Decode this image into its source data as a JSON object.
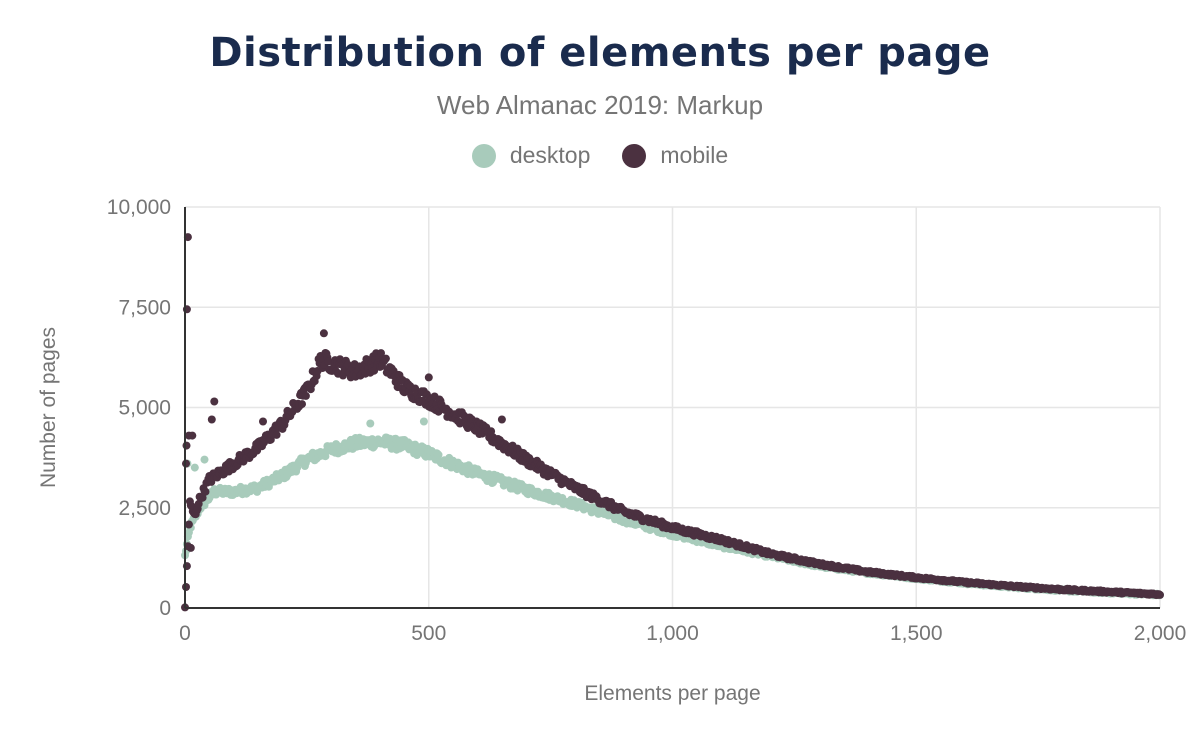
{
  "chart_data": {
    "type": "scatter",
    "title": "Distribution of elements per page",
    "subtitle": "Web Almanac 2019: Markup",
    "xlabel": "Elements per page",
    "ylabel": "Number of pages",
    "xlim": [
      0,
      2000
    ],
    "ylim": [
      0,
      10000
    ],
    "xticks": [
      0,
      500,
      1000,
      1500,
      2000
    ],
    "yticks": [
      0,
      2500,
      5000,
      7500,
      10000
    ],
    "xtick_labels": [
      "0",
      "500",
      "1,000",
      "1,500",
      "2,000"
    ],
    "ytick_labels": [
      "0",
      "2,500",
      "5,000",
      "7,500",
      "10,000"
    ],
    "grid": true,
    "legend_position": "top-center",
    "series": [
      {
        "name": "desktop",
        "color": "#a8cbbb",
        "anchors": [
          [
            0,
            1300
          ],
          [
            10,
            2000
          ],
          [
            30,
            2500
          ],
          [
            60,
            2900
          ],
          [
            100,
            2900
          ],
          [
            150,
            3000
          ],
          [
            200,
            3300
          ],
          [
            250,
            3700
          ],
          [
            300,
            3950
          ],
          [
            350,
            4100
          ],
          [
            400,
            4150
          ],
          [
            450,
            4050
          ],
          [
            500,
            3850
          ],
          [
            600,
            3350
          ],
          [
            700,
            2950
          ],
          [
            800,
            2600
          ],
          [
            900,
            2200
          ],
          [
            1000,
            1850
          ],
          [
            1100,
            1550
          ],
          [
            1200,
            1300
          ],
          [
            1300,
            1050
          ],
          [
            1400,
            880
          ],
          [
            1500,
            740
          ],
          [
            1600,
            620
          ],
          [
            1700,
            520
          ],
          [
            1800,
            440
          ],
          [
            1900,
            380
          ],
          [
            2000,
            330
          ]
        ],
        "outliers": [
          [
            5,
            3600
          ],
          [
            20,
            3500
          ],
          [
            40,
            3700
          ],
          [
            380,
            4600
          ],
          [
            490,
            4650
          ]
        ]
      },
      {
        "name": "mobile",
        "color": "#4b3140",
        "anchors": [
          [
            0,
            0
          ],
          [
            10,
            2600
          ],
          [
            20,
            2300
          ],
          [
            30,
            2700
          ],
          [
            50,
            3200
          ],
          [
            100,
            3600
          ],
          [
            150,
            4000
          ],
          [
            200,
            4600
          ],
          [
            250,
            5400
          ],
          [
            280,
            6200
          ],
          [
            300,
            6100
          ],
          [
            350,
            5900
          ],
          [
            400,
            6200
          ],
          [
            450,
            5500
          ],
          [
            500,
            5200
          ],
          [
            600,
            4500
          ],
          [
            700,
            3700
          ],
          [
            800,
            3000
          ],
          [
            900,
            2400
          ],
          [
            1000,
            2000
          ],
          [
            1100,
            1700
          ],
          [
            1200,
            1350
          ],
          [
            1300,
            1100
          ],
          [
            1400,
            900
          ],
          [
            1500,
            760
          ],
          [
            1600,
            640
          ],
          [
            1700,
            540
          ],
          [
            1800,
            460
          ],
          [
            1900,
            400
          ],
          [
            2000,
            340
          ]
        ],
        "outliers": [
          [
            4,
            7450
          ],
          [
            6,
            9250
          ],
          [
            3,
            4050
          ],
          [
            8,
            4300
          ],
          [
            12,
            1500
          ],
          [
            15,
            4300
          ],
          [
            60,
            5150
          ],
          [
            55,
            4700
          ],
          [
            160,
            4650
          ],
          [
            285,
            6850
          ],
          [
            500,
            5750
          ],
          [
            650,
            4700
          ],
          [
            2,
            3600
          ]
        ]
      }
    ]
  }
}
